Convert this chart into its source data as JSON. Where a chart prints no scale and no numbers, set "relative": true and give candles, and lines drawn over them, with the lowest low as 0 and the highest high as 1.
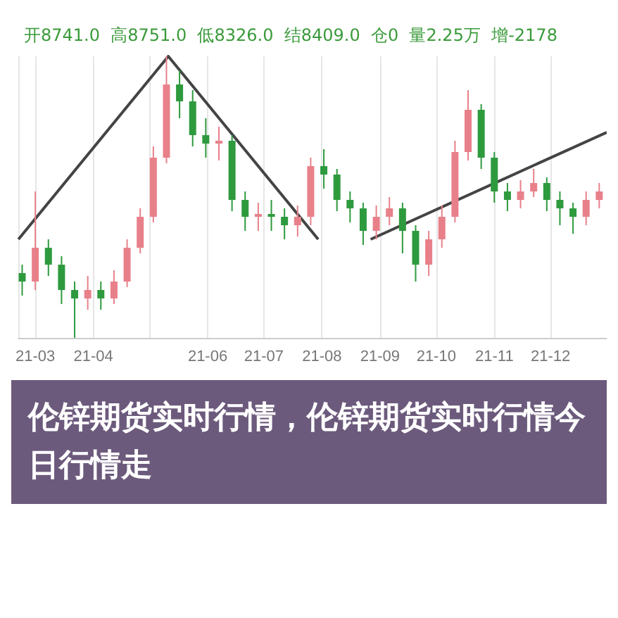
{
  "chart_data": {
    "type": "candlestick",
    "title": "伦锌期货实时行情，伦锌期货实时行情今日行情走",
    "subtitle": "开8741.0  高8751.0  低8326.0  结8409.0  仓0  量2.25万  增-2178",
    "relative": true,
    "grid": "x",
    "x": [
      "--02-22",
      "--03-01",
      "--03-08",
      "--03-15",
      "--03-22",
      "--03-29",
      "--04-05",
      "--04-12",
      "--04-19",
      "--04-26",
      "--05-03",
      "--05-10",
      "--05-17",
      "--05-24",
      "--05-31",
      "--06-07",
      "--06-14",
      "--06-21",
      "--06-28",
      "--07-05",
      "--07-12",
      "--07-19",
      "--07-26",
      "--08-02",
      "--08-09",
      "--08-16",
      "--08-23",
      "--08-30",
      "--09-06",
      "--09-13",
      "--09-20",
      "--09-27",
      "--10-04",
      "--10-11",
      "--10-18",
      "--10-25",
      "--11-01",
      "--11-08",
      "--11-15",
      "--11-22",
      "--11-29",
      "--12-06",
      "--12-13",
      "--12-20",
      "--12-27"
    ],
    "ohlc": [
      [
        0.23,
        0.26,
        0.15,
        0.2
      ],
      [
        0.2,
        0.52,
        0.17,
        0.32
      ],
      [
        0.32,
        0.35,
        0.22,
        0.26
      ],
      [
        0.26,
        0.29,
        0.12,
        0.17
      ],
      [
        0.17,
        0.2,
        0.0,
        0.14
      ],
      [
        0.14,
        0.22,
        0.1,
        0.17
      ],
      [
        0.17,
        0.2,
        0.1,
        0.14
      ],
      [
        0.14,
        0.24,
        0.12,
        0.2
      ],
      [
        0.2,
        0.35,
        0.18,
        0.32
      ],
      [
        0.32,
        0.46,
        0.3,
        0.43
      ],
      [
        0.43,
        0.68,
        0.41,
        0.64
      ],
      [
        0.64,
        1.0,
        0.62,
        0.9
      ],
      [
        0.9,
        0.95,
        0.78,
        0.84
      ],
      [
        0.84,
        0.88,
        0.68,
        0.72
      ],
      [
        0.72,
        0.78,
        0.64,
        0.69
      ],
      [
        0.69,
        0.75,
        0.63,
        0.7
      ],
      [
        0.7,
        0.72,
        0.45,
        0.49
      ],
      [
        0.49,
        0.52,
        0.38,
        0.43
      ],
      [
        0.43,
        0.48,
        0.38,
        0.44
      ],
      [
        0.44,
        0.49,
        0.38,
        0.43
      ],
      [
        0.43,
        0.46,
        0.35,
        0.4
      ],
      [
        0.4,
        0.47,
        0.36,
        0.43
      ],
      [
        0.43,
        0.64,
        0.4,
        0.61
      ],
      [
        0.61,
        0.67,
        0.53,
        0.58
      ],
      [
        0.58,
        0.6,
        0.45,
        0.49
      ],
      [
        0.49,
        0.52,
        0.41,
        0.46
      ],
      [
        0.46,
        0.48,
        0.33,
        0.38
      ],
      [
        0.38,
        0.47,
        0.35,
        0.43
      ],
      [
        0.43,
        0.5,
        0.4,
        0.46
      ],
      [
        0.46,
        0.48,
        0.3,
        0.38
      ],
      [
        0.38,
        0.4,
        0.2,
        0.26
      ],
      [
        0.26,
        0.38,
        0.22,
        0.35
      ],
      [
        0.35,
        0.47,
        0.32,
        0.43
      ],
      [
        0.43,
        0.7,
        0.41,
        0.66
      ],
      [
        0.66,
        0.88,
        0.63,
        0.81
      ],
      [
        0.81,
        0.83,
        0.6,
        0.64
      ],
      [
        0.64,
        0.66,
        0.48,
        0.52
      ],
      [
        0.52,
        0.55,
        0.45,
        0.49
      ],
      [
        0.49,
        0.56,
        0.46,
        0.52
      ],
      [
        0.52,
        0.6,
        0.5,
        0.55
      ],
      [
        0.55,
        0.57,
        0.45,
        0.49
      ],
      [
        0.49,
        0.52,
        0.4,
        0.46
      ],
      [
        0.46,
        0.48,
        0.37,
        0.43
      ],
      [
        0.43,
        0.52,
        0.4,
        0.49
      ],
      [
        0.49,
        0.55,
        0.46,
        0.52
      ]
    ],
    "colors": [
      "#2e9a3e",
      "#e8808a",
      "#2e9a3e",
      "#2e9a3e",
      "#2e9a3e",
      "#e8808a",
      "#2e9a3e",
      "#e8808a",
      "#e8808a",
      "#e8808a",
      "#e8808a",
      "#e8808a",
      "#2e9a3e",
      "#2e9a3e",
      "#2e9a3e",
      "#e8808a",
      "#2e9a3e",
      "#2e9a3e",
      "#e8808a",
      "#2e9a3e",
      "#2e9a3e",
      "#e8808a",
      "#e8808a",
      "#2e9a3e",
      "#2e9a3e",
      "#2e9a3e",
      "#2e9a3e",
      "#e8808a",
      "#e8808a",
      "#2e9a3e",
      "#2e9a3e",
      "#e8808a",
      "#e8808a",
      "#e8808a",
      "#e8808a",
      "#2e9a3e",
      "#2e9a3e",
      "#2e9a3e",
      "#e8808a",
      "#e8808a",
      "#2e9a3e",
      "#2e9a3e",
      "#2e9a3e",
      "#e8808a",
      "#e8808a"
    ],
    "series": [
      {
        "type": "line",
        "color": "#444444",
        "x": [
          "--02-20",
          "--05-11",
          "--07-30"
        ],
        "values": [
          0.35,
          1.0,
          0.35
        ]
      },
      {
        "type": "line",
        "color": "#444444",
        "x": [
          "--08-27",
          "--12-31"
        ],
        "values": [
          0.35,
          0.73
        ]
      }
    ],
    "xlim": [
      "--02-20",
      "--12-31"
    ],
    "xticks": [
      {
        "value": "--03-01",
        "label": "21-03"
      },
      {
        "value": "--04-01",
        "label": "21-04"
      },
      {
        "value": "--06-01",
        "label": "21-06"
      },
      {
        "value": "--07-01",
        "label": "21-07"
      },
      {
        "value": "--08-01",
        "label": "21-08"
      },
      {
        "value": "--09-01",
        "label": "21-09"
      },
      {
        "value": "--10-01",
        "label": "21-10"
      },
      {
        "value": "--11-01",
        "label": "21-11"
      },
      {
        "value": "--12-01",
        "label": "21-12"
      }
    ]
  }
}
